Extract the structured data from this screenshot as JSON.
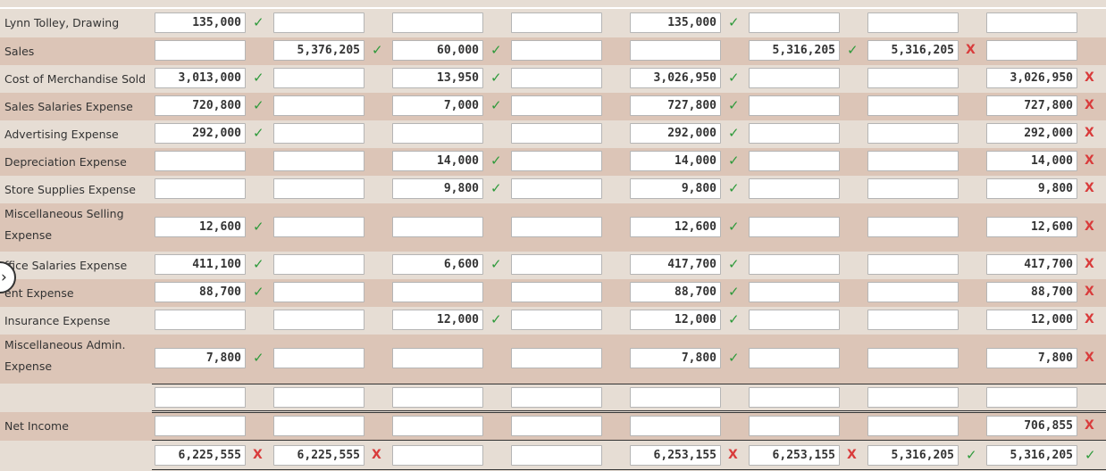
{
  "columns": 8,
  "rows": [
    {
      "label": "Lynn Tolley, Drawing",
      "cells": [
        {
          "v": "135,000",
          "m": "check"
        },
        {
          "v": "",
          "m": ""
        },
        {
          "v": "",
          "m": ""
        },
        {
          "v": "",
          "m": ""
        },
        {
          "v": "135,000",
          "m": "check"
        },
        {
          "v": "",
          "m": ""
        },
        {
          "v": "",
          "m": ""
        },
        {
          "v": "",
          "m": ""
        }
      ]
    },
    {
      "label": "Sales",
      "cells": [
        {
          "v": "",
          "m": ""
        },
        {
          "v": "5,376,205",
          "m": "check"
        },
        {
          "v": "60,000",
          "m": "check"
        },
        {
          "v": "",
          "m": ""
        },
        {
          "v": "",
          "m": ""
        },
        {
          "v": "5,316,205",
          "m": "check"
        },
        {
          "v": "5,316,205",
          "m": "cross"
        },
        {
          "v": "",
          "m": ""
        }
      ]
    },
    {
      "label": "Cost of Merchandise Sold",
      "cells": [
        {
          "v": "3,013,000",
          "m": "check"
        },
        {
          "v": "",
          "m": ""
        },
        {
          "v": "13,950",
          "m": "check"
        },
        {
          "v": "",
          "m": ""
        },
        {
          "v": "3,026,950",
          "m": "check"
        },
        {
          "v": "",
          "m": ""
        },
        {
          "v": "",
          "m": ""
        },
        {
          "v": "3,026,950",
          "m": "cross"
        }
      ]
    },
    {
      "label": "Sales Salaries Expense",
      "cells": [
        {
          "v": "720,800",
          "m": "check"
        },
        {
          "v": "",
          "m": ""
        },
        {
          "v": "7,000",
          "m": "check"
        },
        {
          "v": "",
          "m": ""
        },
        {
          "v": "727,800",
          "m": "check"
        },
        {
          "v": "",
          "m": ""
        },
        {
          "v": "",
          "m": ""
        },
        {
          "v": "727,800",
          "m": "cross"
        }
      ]
    },
    {
      "label": "Advertising Expense",
      "cells": [
        {
          "v": "292,000",
          "m": "check"
        },
        {
          "v": "",
          "m": ""
        },
        {
          "v": "",
          "m": ""
        },
        {
          "v": "",
          "m": ""
        },
        {
          "v": "292,000",
          "m": "check"
        },
        {
          "v": "",
          "m": ""
        },
        {
          "v": "",
          "m": ""
        },
        {
          "v": "292,000",
          "m": "cross"
        }
      ]
    },
    {
      "label": "Depreciation Expense",
      "cells": [
        {
          "v": "",
          "m": ""
        },
        {
          "v": "",
          "m": ""
        },
        {
          "v": "14,000",
          "m": "check"
        },
        {
          "v": "",
          "m": ""
        },
        {
          "v": "14,000",
          "m": "check"
        },
        {
          "v": "",
          "m": ""
        },
        {
          "v": "",
          "m": ""
        },
        {
          "v": "14,000",
          "m": "cross"
        }
      ]
    },
    {
      "label": "Store Supplies Expense",
      "cells": [
        {
          "v": "",
          "m": ""
        },
        {
          "v": "",
          "m": ""
        },
        {
          "v": "9,800",
          "m": "check"
        },
        {
          "v": "",
          "m": ""
        },
        {
          "v": "9,800",
          "m": "check"
        },
        {
          "v": "",
          "m": ""
        },
        {
          "v": "",
          "m": ""
        },
        {
          "v": "9,800",
          "m": "cross"
        }
      ]
    },
    {
      "label": "Miscellaneous Selling Expense",
      "cells": [
        {
          "v": "12,600",
          "m": "check"
        },
        {
          "v": "",
          "m": ""
        },
        {
          "v": "",
          "m": ""
        },
        {
          "v": "",
          "m": ""
        },
        {
          "v": "12,600",
          "m": "check"
        },
        {
          "v": "",
          "m": ""
        },
        {
          "v": "",
          "m": ""
        },
        {
          "v": "12,600",
          "m": "cross"
        }
      ]
    },
    {
      "label": "ffice Salaries Expense",
      "cells": [
        {
          "v": "411,100",
          "m": "check"
        },
        {
          "v": "",
          "m": ""
        },
        {
          "v": "6,600",
          "m": "check"
        },
        {
          "v": "",
          "m": ""
        },
        {
          "v": "417,700",
          "m": "check"
        },
        {
          "v": "",
          "m": ""
        },
        {
          "v": "",
          "m": ""
        },
        {
          "v": "417,700",
          "m": "cross"
        }
      ]
    },
    {
      "label": "ent Expense",
      "cells": [
        {
          "v": "88,700",
          "m": "check"
        },
        {
          "v": "",
          "m": ""
        },
        {
          "v": "",
          "m": ""
        },
        {
          "v": "",
          "m": ""
        },
        {
          "v": "88,700",
          "m": "check"
        },
        {
          "v": "",
          "m": ""
        },
        {
          "v": "",
          "m": ""
        },
        {
          "v": "88,700",
          "m": "cross"
        }
      ]
    },
    {
      "label": "Insurance Expense",
      "cells": [
        {
          "v": "",
          "m": ""
        },
        {
          "v": "",
          "m": ""
        },
        {
          "v": "12,000",
          "m": "check"
        },
        {
          "v": "",
          "m": ""
        },
        {
          "v": "12,000",
          "m": "check"
        },
        {
          "v": "",
          "m": ""
        },
        {
          "v": "",
          "m": ""
        },
        {
          "v": "12,000",
          "m": "cross"
        }
      ]
    },
    {
      "label": "Miscellaneous Admin. Expense",
      "cells": [
        {
          "v": "7,800",
          "m": "check"
        },
        {
          "v": "",
          "m": ""
        },
        {
          "v": "",
          "m": ""
        },
        {
          "v": "",
          "m": ""
        },
        {
          "v": "7,800",
          "m": "check"
        },
        {
          "v": "",
          "m": ""
        },
        {
          "v": "",
          "m": ""
        },
        {
          "v": "7,800",
          "m": "cross"
        }
      ]
    },
    {
      "label": "",
      "cells": [
        {
          "v": "",
          "m": ""
        },
        {
          "v": "",
          "m": ""
        },
        {
          "v": "",
          "m": ""
        },
        {
          "v": "",
          "m": ""
        },
        {
          "v": "",
          "m": ""
        },
        {
          "v": "",
          "m": ""
        },
        {
          "v": "",
          "m": ""
        },
        {
          "v": "",
          "m": ""
        }
      ]
    },
    {
      "label": "Net Income",
      "cells": [
        {
          "v": "",
          "m": ""
        },
        {
          "v": "",
          "m": ""
        },
        {
          "v": "",
          "m": ""
        },
        {
          "v": "",
          "m": ""
        },
        {
          "v": "",
          "m": ""
        },
        {
          "v": "",
          "m": ""
        },
        {
          "v": "",
          "m": ""
        },
        {
          "v": "706,855",
          "m": "cross"
        }
      ]
    },
    {
      "label": "",
      "cells": [
        {
          "v": "6,225,555",
          "m": "cross"
        },
        {
          "v": "6,225,555",
          "m": "cross"
        },
        {
          "v": "",
          "m": ""
        },
        {
          "v": "",
          "m": ""
        },
        {
          "v": "6,253,155",
          "m": "cross"
        },
        {
          "v": "6,253,155",
          "m": "cross"
        },
        {
          "v": "5,316,205",
          "m": "check"
        },
        {
          "v": "5,316,205",
          "m": "check"
        }
      ]
    }
  ],
  "marks": {
    "check": "✓",
    "cross": "X"
  },
  "colors": {
    "row_light": "#e6ddd4",
    "row_dark": "#dcc5b7",
    "check": "#2e9a3b",
    "cross": "#d93b3b"
  },
  "icons": {
    "collapse": "chevron-right-icon"
  }
}
